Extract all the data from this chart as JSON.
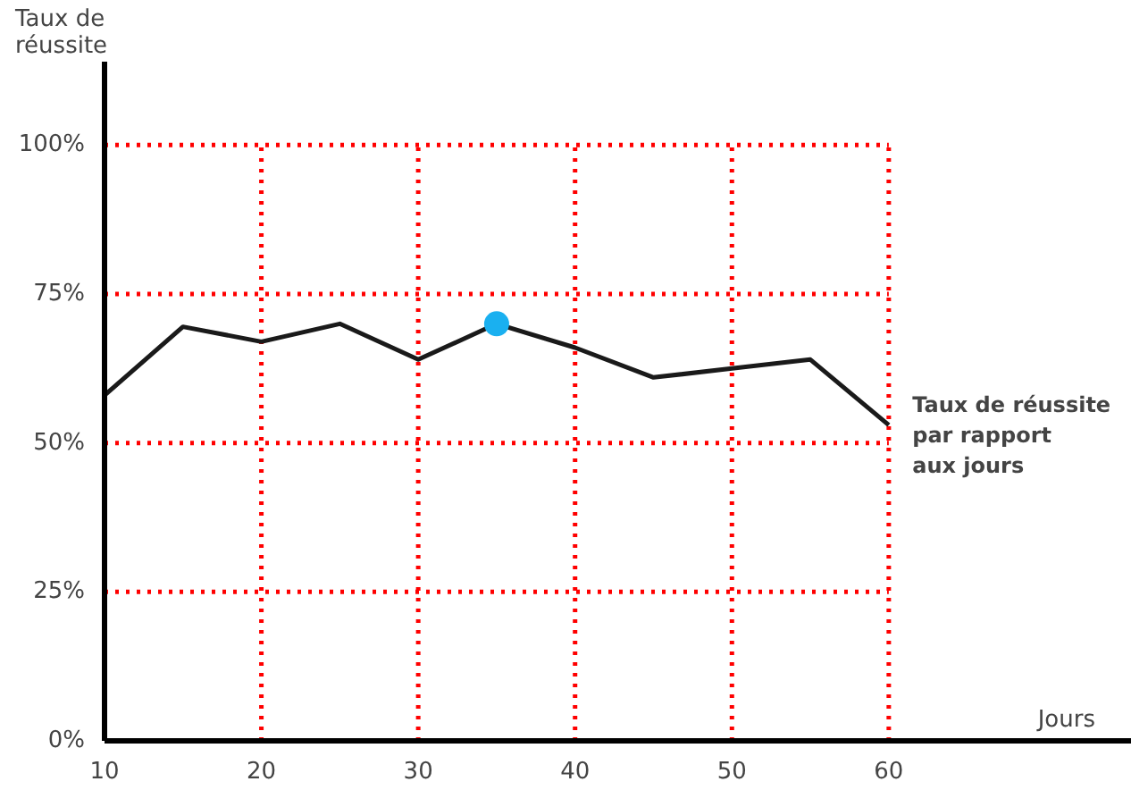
{
  "chart_data": {
    "type": "line",
    "ylabel": "Taux de\nréussite",
    "xlabel": "Jours",
    "annotations": [
      "Taux de réussite\npar rapport\naux jours"
    ],
    "x": [
      10,
      15,
      20,
      25,
      30,
      35,
      40,
      45,
      50,
      55,
      60
    ],
    "series": [
      {
        "color": "#1a1a1a",
        "values": [
          58,
          69.5,
          67,
          70,
          64,
          70,
          66,
          61,
          62.5,
          64,
          53
        ]
      },
      {
        "type": "scatter",
        "color": "#1ab0f0",
        "x": [
          35
        ],
        "values": [
          70
        ]
      }
    ],
    "xlim": [
      10,
      75.5
    ],
    "ylim": [
      0,
      114
    ],
    "xticks": [
      10,
      20,
      30,
      40,
      50,
      60
    ],
    "yticks": [
      {
        "value": 0,
        "label": "0%"
      },
      {
        "value": 25,
        "label": "25%"
      },
      {
        "value": 50,
        "label": "50%"
      },
      {
        "value": 75,
        "label": "75%"
      },
      {
        "value": 100,
        "label": "100%"
      }
    ],
    "grid": true,
    "line_style": "solid"
  }
}
